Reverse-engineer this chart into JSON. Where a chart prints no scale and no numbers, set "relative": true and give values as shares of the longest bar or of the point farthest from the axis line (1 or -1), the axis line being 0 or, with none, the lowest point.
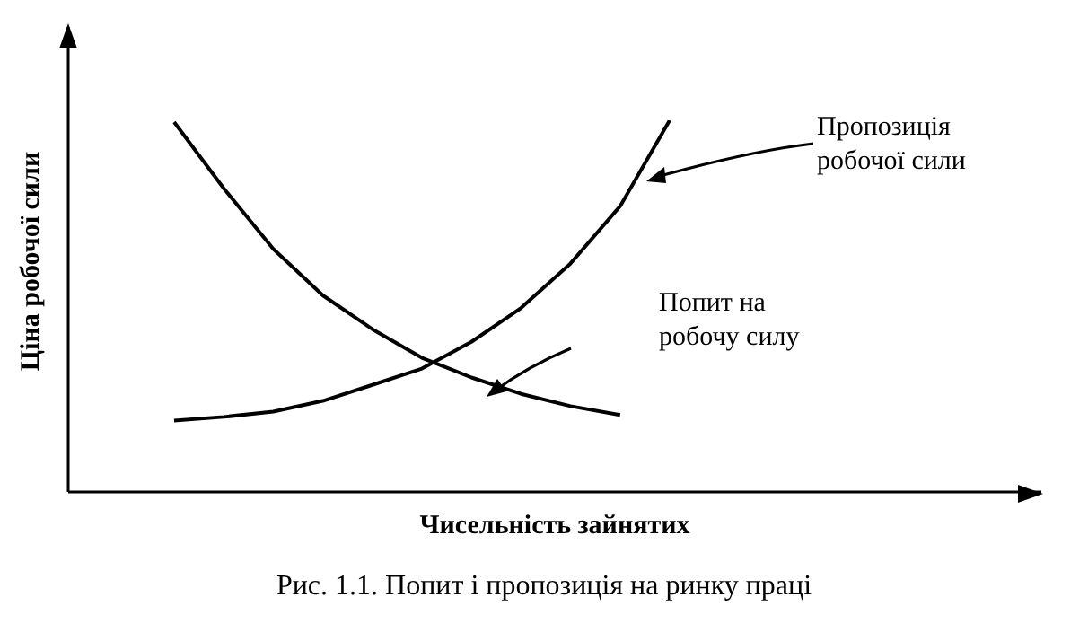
{
  "chart_data": {
    "type": "line",
    "relative": true,
    "xlabel": "Чисельність зайнятих",
    "ylabel": "Ціна робочої сили",
    "annotations": [
      "Рис. 1.1. Попит і пропозиція на ринку праці"
    ],
    "marker": "none",
    "line_style": "solid",
    "legend": false,
    "categories": [
      null,
      null,
      null,
      null,
      null,
      null,
      null,
      null,
      null,
      null,
      null
    ],
    "series": [
      {
        "name": "Пропозиція робочої сили",
        "color": "#000000",
        "values": [
          0.192,
          0.202,
          0.216,
          0.245,
          0.288,
          0.332,
          0.404,
          0.495,
          0.615,
          0.769,
          1
        ]
      },
      {
        "name": "Попит на робочу силу",
        "color": "#000000",
        "values": [
          0.995,
          0.817,
          0.654,
          0.529,
          0.438,
          0.361,
          0.308,
          0.264,
          0.231,
          0.207,
          null
        ]
      }
    ]
  }
}
